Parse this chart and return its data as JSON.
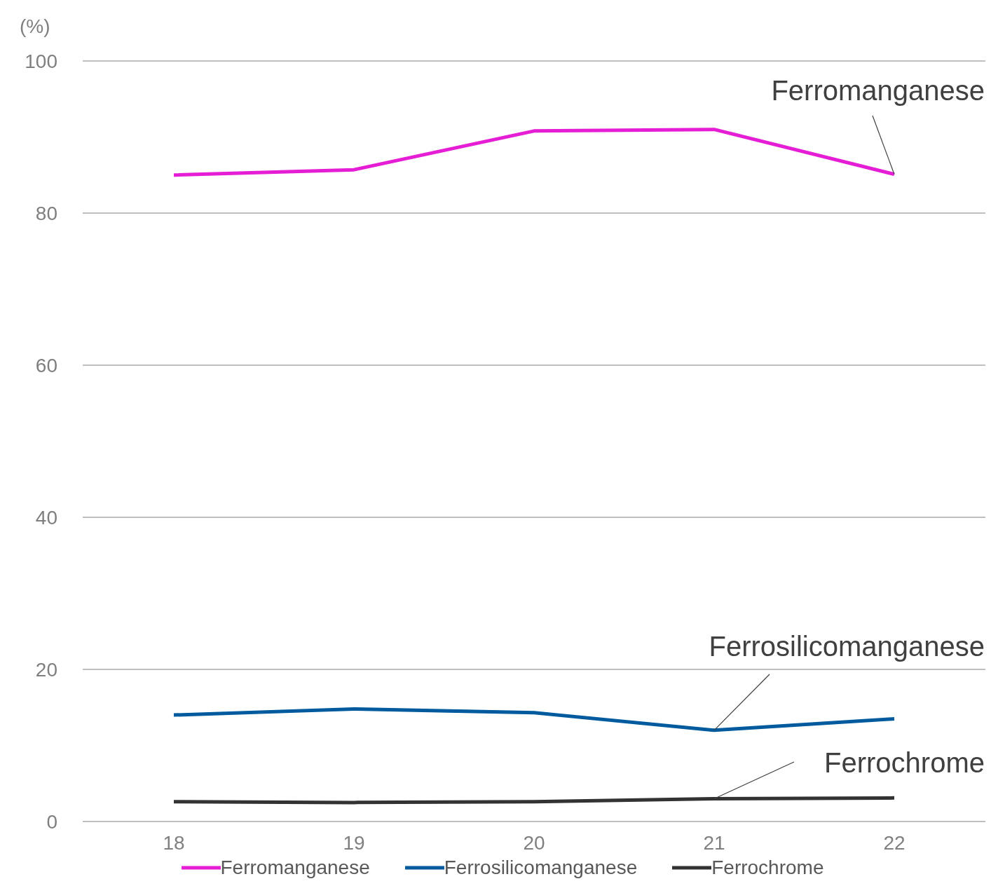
{
  "chart_data": {
    "type": "line",
    "ylabel": "(%)",
    "categories": [
      "18",
      "19",
      "20",
      "21",
      "22"
    ],
    "series": [
      {
        "name": "Ferromanganese",
        "color": "#e51ed6",
        "values": [
          85.0,
          85.7,
          90.8,
          91.0,
          85.1
        ]
      },
      {
        "name": "Ferrosilicomanganese",
        "color": "#005a9e",
        "values": [
          14.0,
          14.8,
          14.3,
          12.0,
          13.5
        ]
      },
      {
        "name": "Ferrochrome",
        "color": "#333333",
        "values": [
          2.6,
          2.5,
          2.6,
          3.0,
          3.1
        ]
      }
    ],
    "ylim": [
      0,
      100
    ],
    "yticks": [
      0,
      20,
      40,
      60,
      80,
      100
    ],
    "grid": "y",
    "legend": "bottom",
    "marker": "none",
    "line_style": "solid",
    "annotations": [
      {
        "text": "Ferromanganese",
        "x": "22",
        "y": 85.1
      },
      {
        "text": "Ferrosilicomanganese",
        "x": "21",
        "y": 12.0
      },
      {
        "text": "Ferrochrome",
        "x": "21",
        "y": 3.0
      }
    ]
  }
}
